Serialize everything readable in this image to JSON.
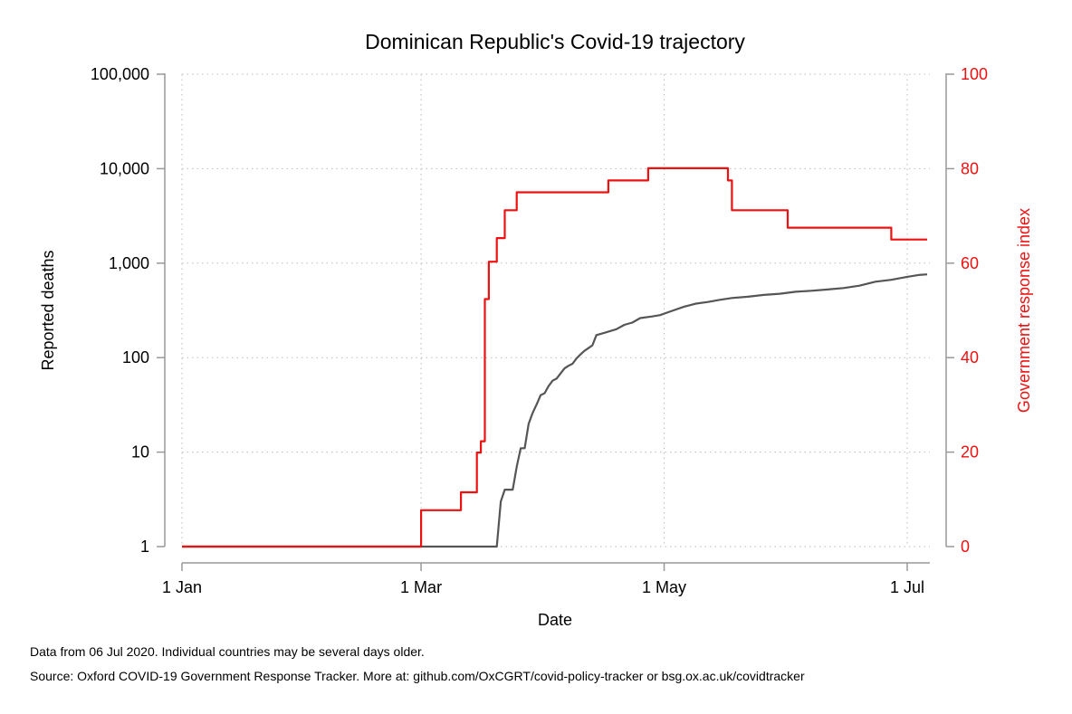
{
  "chart_data": {
    "type": "line",
    "title": "Dominican Republic's Covid-19 trajectory",
    "xlabel": "Date",
    "ylabel_left": "Reported deaths",
    "ylabel_right": "Government response index",
    "x_ticks": [
      {
        "date": "2020-01-01",
        "label": "1 Jan"
      },
      {
        "date": "2020-03-01",
        "label": "1 Mar"
      },
      {
        "date": "2020-05-01",
        "label": "1 May"
      },
      {
        "date": "2020-07-01",
        "label": "1 Jul"
      }
    ],
    "xlim": [
      "2020-01-01",
      "2020-07-06"
    ],
    "y_left": {
      "scale": "log",
      "range": [
        1,
        100000
      ],
      "ticks": [
        {
          "value": 1,
          "label": "1"
        },
        {
          "value": 10,
          "label": "10"
        },
        {
          "value": 100,
          "label": "100"
        },
        {
          "value": 1000,
          "label": "1,000"
        },
        {
          "value": 10000,
          "label": "10,000"
        },
        {
          "value": 100000,
          "label": "100,000"
        }
      ]
    },
    "y_right": {
      "scale": "linear",
      "range": [
        0,
        100
      ],
      "ticks": [
        {
          "value": 0,
          "label": "0"
        },
        {
          "value": 20,
          "label": "20"
        },
        {
          "value": 40,
          "label": "40"
        },
        {
          "value": 60,
          "label": "60"
        },
        {
          "value": 80,
          "label": "80"
        },
        {
          "value": 100,
          "label": "100"
        }
      ]
    },
    "grid": true,
    "series": [
      {
        "axis": "left",
        "color": "#555555",
        "points": [
          [
            "2020-01-01",
            1
          ],
          [
            "2020-03-01",
            1
          ],
          [
            "2020-03-20",
            1
          ],
          [
            "2020-03-21",
            3
          ],
          [
            "2020-03-22",
            4
          ],
          [
            "2020-03-24",
            4
          ],
          [
            "2020-03-25",
            7
          ],
          [
            "2020-03-26",
            11
          ],
          [
            "2020-03-27",
            11
          ],
          [
            "2020-03-28",
            20
          ],
          [
            "2020-03-29",
            26
          ],
          [
            "2020-03-30",
            32
          ],
          [
            "2020-03-31",
            40
          ],
          [
            "2020-04-01",
            42
          ],
          [
            "2020-04-02",
            50
          ],
          [
            "2020-04-03",
            57
          ],
          [
            "2020-04-04",
            60
          ],
          [
            "2020-04-05",
            68
          ],
          [
            "2020-04-06",
            77
          ],
          [
            "2020-04-07",
            82
          ],
          [
            "2020-04-08",
            86
          ],
          [
            "2020-04-09",
            98
          ],
          [
            "2020-04-10",
            108
          ],
          [
            "2020-04-11",
            118
          ],
          [
            "2020-04-12",
            126
          ],
          [
            "2020-04-13",
            135
          ],
          [
            "2020-04-14",
            173
          ],
          [
            "2020-04-16",
            183
          ],
          [
            "2020-04-19",
            200
          ],
          [
            "2020-04-21",
            222
          ],
          [
            "2020-04-23",
            235
          ],
          [
            "2020-04-25",
            262
          ],
          [
            "2020-04-28",
            273
          ],
          [
            "2020-04-30",
            282
          ],
          [
            "2020-05-03",
            313
          ],
          [
            "2020-05-06",
            346
          ],
          [
            "2020-05-09",
            373
          ],
          [
            "2020-05-12",
            388
          ],
          [
            "2020-05-15",
            409
          ],
          [
            "2020-05-18",
            428
          ],
          [
            "2020-05-22",
            441
          ],
          [
            "2020-05-26",
            461
          ],
          [
            "2020-05-30",
            474
          ],
          [
            "2020-06-03",
            498
          ],
          [
            "2020-06-07",
            510
          ],
          [
            "2020-06-11",
            526
          ],
          [
            "2020-06-15",
            545
          ],
          [
            "2020-06-19",
            577
          ],
          [
            "2020-06-23",
            636
          ],
          [
            "2020-06-27",
            666
          ],
          [
            "2020-07-01",
            716
          ],
          [
            "2020-07-04",
            750
          ],
          [
            "2020-07-06",
            760
          ]
        ]
      },
      {
        "axis": "right",
        "color": "#ee1111",
        "step": true,
        "points": [
          [
            "2020-01-01",
            0
          ],
          [
            "2020-03-01",
            0
          ],
          [
            "2020-03-01",
            7.7
          ],
          [
            "2020-03-11",
            7.7
          ],
          [
            "2020-03-11",
            11.5
          ],
          [
            "2020-03-15",
            11.5
          ],
          [
            "2020-03-15",
            19.9
          ],
          [
            "2020-03-16",
            19.9
          ],
          [
            "2020-03-16",
            22.3
          ],
          [
            "2020-03-17",
            22.3
          ],
          [
            "2020-03-17",
            52.4
          ],
          [
            "2020-03-18",
            52.4
          ],
          [
            "2020-03-18",
            60.3
          ],
          [
            "2020-03-20",
            60.3
          ],
          [
            "2020-03-20",
            65.3
          ],
          [
            "2020-03-22",
            65.3
          ],
          [
            "2020-03-22",
            71.2
          ],
          [
            "2020-03-25",
            71.2
          ],
          [
            "2020-03-25",
            75.0
          ],
          [
            "2020-04-17",
            75.0
          ],
          [
            "2020-04-17",
            77.5
          ],
          [
            "2020-04-27",
            77.5
          ],
          [
            "2020-04-27",
            80.1
          ],
          [
            "2020-05-17",
            80.1
          ],
          [
            "2020-05-17",
            77.5
          ],
          [
            "2020-05-18",
            77.5
          ],
          [
            "2020-05-18",
            71.2
          ],
          [
            "2020-06-01",
            71.2
          ],
          [
            "2020-06-01",
            67.5
          ],
          [
            "2020-06-27",
            67.5
          ],
          [
            "2020-06-27",
            65.0
          ],
          [
            "2020-07-06",
            65.0
          ]
        ]
      }
    ]
  },
  "footer": {
    "note1": "Data from 06 Jul 2020. Individual countries may be several days older.",
    "note2": "Source: Oxford COVID-19 Government Response Tracker. More at: github.com/OxCGRT/covid-policy-tracker or bsg.ox.ac.uk/covidtracker"
  }
}
